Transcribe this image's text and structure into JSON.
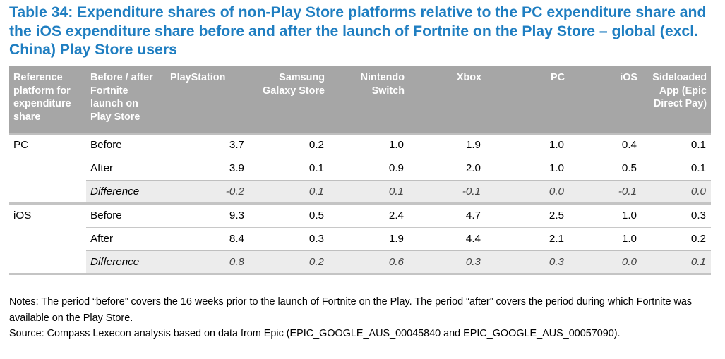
{
  "title": "Table 34: Expenditure shares of non-Play Store platforms relative to the PC expenditure share and the iOS expenditure share before and after the launch of Fortnite on the Play Store – global (excl. China) Play Store users",
  "header": {
    "reference": "Reference platform for expenditure share",
    "period": "Before / after Fortnite launch on Play Store",
    "columns": [
      "PlayStation",
      "Samsung Galaxy Store",
      "Nintendo Switch",
      "Xbox",
      "PC",
      "iOS",
      "Sideloaded App (Epic Direct Pay)"
    ]
  },
  "groups": [
    {
      "reference": "PC",
      "rows": [
        {
          "period": "Before",
          "values": [
            "3.7",
            "0.2",
            "1.0",
            "1.9",
            "1.0",
            "0.4",
            "0.1"
          ]
        },
        {
          "period": "After",
          "values": [
            "3.9",
            "0.1",
            "0.9",
            "2.0",
            "1.0",
            "0.5",
            "0.1"
          ]
        },
        {
          "period": "Difference",
          "values": [
            "-0.2",
            "0.1",
            "0.1",
            "-0.1",
            "0.0",
            "-0.1",
            "0.0"
          ]
        }
      ]
    },
    {
      "reference": "iOS",
      "rows": [
        {
          "period": "Before",
          "values": [
            "9.3",
            "0.5",
            "2.4",
            "4.7",
            "2.5",
            "1.0",
            "0.3"
          ]
        },
        {
          "period": "After",
          "values": [
            "8.4",
            "0.3",
            "1.9",
            "4.4",
            "2.1",
            "1.0",
            "0.2"
          ]
        },
        {
          "period": "Difference",
          "values": [
            "0.8",
            "0.2",
            "0.6",
            "0.3",
            "0.3",
            "0.0",
            "0.1"
          ]
        }
      ]
    }
  ],
  "notes": {
    "line1": "Notes:  The period “before” covers the 16 weeks prior to the launch of Fortnite on the Play. The period “after” covers the period during which Fortnite was available on the Play Store.",
    "source": "Source: Compass Lexecon analysis based on data from Epic (EPIC_GOOGLE_AUS_00045840 and EPIC_GOOGLE_AUS_00057090)."
  },
  "colors": {
    "title": "#1f7ec1",
    "header_bg": "#a6a6a6",
    "header_text": "#ffffff",
    "difference_bg": "#ececec"
  }
}
